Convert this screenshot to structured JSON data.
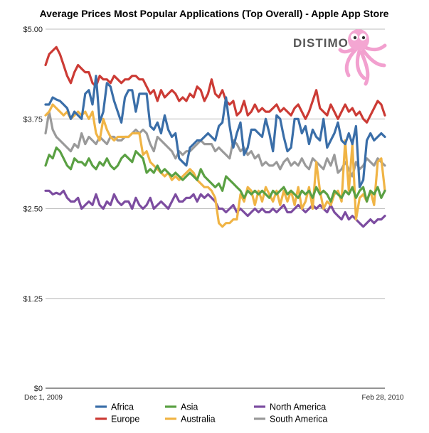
{
  "chart_data": {
    "type": "line",
    "title": "Average Prices Most Popular Applications (Top Overall) - Apple App Store",
    "brand": "DISTIMO",
    "xlabel": "",
    "ylabel": "",
    "ylim": [
      0,
      5
    ],
    "yticks": [
      0,
      1.25,
      2.5,
      3.75,
      5
    ],
    "ytick_labels": [
      "$0",
      "$1.25",
      "$2.50",
      "$3.75",
      "$5.00"
    ],
    "xtick_labels": [
      "Dec 1, 2009",
      "Feb 28, 2010"
    ],
    "grid": true,
    "legend_position": "bottom",
    "series": [
      {
        "name": "Africa",
        "color": "#3a6ea8",
        "values": [
          3.95,
          3.95,
          4.05,
          4.02,
          4.0,
          3.95,
          3.9,
          3.75,
          3.85,
          3.8,
          3.75,
          4.1,
          4.15,
          3.95,
          4.35,
          3.7,
          3.85,
          4.25,
          4.2,
          4.0,
          3.85,
          3.7,
          4.05,
          4.15,
          4.15,
          3.85,
          4.1,
          4.1,
          4.1,
          3.65,
          3.6,
          3.7,
          3.55,
          3.8,
          3.6,
          3.5,
          3.55,
          3.2,
          3.15,
          3.1,
          3.35,
          3.4,
          3.45,
          3.45,
          3.5,
          3.55,
          3.5,
          3.45,
          3.65,
          3.7,
          4.05,
          3.65,
          3.35,
          3.55,
          3.7,
          3.25,
          3.35,
          3.6,
          3.6,
          3.55,
          3.5,
          3.75,
          3.55,
          3.3,
          3.8,
          3.75,
          3.5,
          3.3,
          3.35,
          3.75,
          3.75,
          3.55,
          3.65,
          3.4,
          3.6,
          3.5,
          3.45,
          3.75,
          3.35,
          3.45,
          3.55,
          3.7,
          3.45,
          3.4,
          3.55,
          3.4,
          3.65,
          2.8,
          2.9,
          3.45,
          3.55,
          3.45,
          3.5,
          3.55,
          3.5
        ]
      },
      {
        "name": "Europe",
        "color": "#cc3b35",
        "values": [
          4.5,
          4.65,
          4.7,
          4.75,
          4.65,
          4.5,
          4.35,
          4.25,
          4.4,
          4.5,
          4.45,
          4.4,
          4.4,
          4.25,
          4.2,
          4.35,
          4.3,
          4.3,
          4.25,
          4.35,
          4.3,
          4.25,
          4.3,
          4.3,
          4.35,
          4.35,
          4.3,
          4.3,
          4.2,
          4.1,
          4.15,
          4.0,
          4.15,
          4.05,
          4.1,
          4.15,
          4.1,
          4.0,
          4.05,
          4.0,
          4.1,
          4.05,
          4.2,
          4.15,
          4.0,
          4.1,
          4.3,
          4.1,
          4.05,
          4.15,
          4.0,
          3.95,
          4.0,
          3.8,
          3.85,
          4.0,
          3.8,
          3.85,
          3.95,
          3.85,
          3.9,
          3.85,
          3.85,
          3.9,
          3.95,
          3.85,
          3.9,
          3.85,
          3.8,
          3.9,
          3.95,
          3.85,
          3.75,
          3.85,
          4.0,
          4.15,
          3.9,
          3.85,
          3.8,
          3.95,
          3.85,
          3.75,
          3.85,
          3.95,
          3.85,
          3.9,
          3.8,
          3.85,
          3.75,
          3.7,
          3.8,
          3.9,
          4.0,
          3.95,
          3.8
        ]
      },
      {
        "name": "Asia",
        "color": "#5aa043",
        "values": [
          3.1,
          3.25,
          3.2,
          3.35,
          3.3,
          3.2,
          3.1,
          3.05,
          3.2,
          3.15,
          3.15,
          3.1,
          3.2,
          3.1,
          3.05,
          3.15,
          3.1,
          3.2,
          3.1,
          3.05,
          3.1,
          3.2,
          3.25,
          3.2,
          3.15,
          3.3,
          3.25,
          3.2,
          3.0,
          3.05,
          3.0,
          3.1,
          3.0,
          3.05,
          3.0,
          2.95,
          3.0,
          2.95,
          2.9,
          2.95,
          3.0,
          2.95,
          2.9,
          3.05,
          2.95,
          2.9,
          2.85,
          2.8,
          2.85,
          2.75,
          2.95,
          2.9,
          2.85,
          2.8,
          2.75,
          2.65,
          2.75,
          2.7,
          2.75,
          2.7,
          2.75,
          2.7,
          2.65,
          2.75,
          2.7,
          2.75,
          2.8,
          2.7,
          2.75,
          2.7,
          2.65,
          2.75,
          2.7,
          2.75,
          2.65,
          2.8,
          2.7,
          2.75,
          2.7,
          2.6,
          2.75,
          2.7,
          2.65,
          2.75,
          2.7,
          2.8,
          2.65,
          2.75,
          2.8,
          2.6,
          2.75,
          2.7,
          2.8,
          2.65,
          2.75
        ]
      },
      {
        "name": "Australia",
        "color": "#f0b445",
        "values": [
          3.8,
          3.85,
          3.95,
          3.9,
          3.85,
          3.8,
          3.85,
          3.75,
          3.8,
          3.85,
          3.8,
          3.85,
          3.75,
          3.85,
          3.55,
          3.45,
          3.75,
          3.6,
          3.5,
          3.45,
          3.5,
          3.5,
          3.5,
          3.5,
          3.55,
          3.55,
          3.55,
          3.25,
          3.3,
          3.15,
          3.1,
          3.05,
          3.0,
          2.95,
          3.0,
          2.9,
          2.95,
          2.9,
          2.95,
          3.0,
          3.05,
          3.0,
          2.9,
          2.85,
          2.8,
          2.8,
          2.75,
          2.65,
          2.3,
          2.25,
          2.3,
          2.3,
          2.35,
          2.35,
          2.7,
          2.6,
          2.8,
          2.75,
          2.55,
          2.75,
          2.6,
          2.8,
          2.7,
          2.6,
          2.75,
          2.55,
          2.75,
          2.6,
          2.75,
          2.55,
          2.8,
          2.5,
          2.6,
          2.8,
          2.5,
          3.15,
          2.75,
          2.5,
          2.6,
          2.55,
          2.7,
          2.75,
          2.6,
          3.45,
          2.75,
          3.4,
          2.35,
          2.65,
          2.7,
          2.6,
          2.75,
          2.55,
          3.15,
          3.2,
          2.75
        ]
      },
      {
        "name": "North America",
        "color": "#7c4ca0",
        "values": [
          2.75,
          2.75,
          2.7,
          2.72,
          2.7,
          2.75,
          2.65,
          2.6,
          2.6,
          2.65,
          2.5,
          2.55,
          2.6,
          2.55,
          2.7,
          2.55,
          2.5,
          2.6,
          2.55,
          2.7,
          2.6,
          2.55,
          2.6,
          2.6,
          2.5,
          2.65,
          2.55,
          2.5,
          2.55,
          2.65,
          2.5,
          2.55,
          2.6,
          2.55,
          2.5,
          2.6,
          2.7,
          2.6,
          2.6,
          2.65,
          2.65,
          2.7,
          2.6,
          2.7,
          2.65,
          2.7,
          2.65,
          2.6,
          2.5,
          2.5,
          2.45,
          2.5,
          2.55,
          2.45,
          2.5,
          2.45,
          2.4,
          2.45,
          2.5,
          2.45,
          2.5,
          2.45,
          2.45,
          2.5,
          2.45,
          2.5,
          2.55,
          2.45,
          2.45,
          2.5,
          2.55,
          2.5,
          2.45,
          2.5,
          2.55,
          2.5,
          2.55,
          2.5,
          2.45,
          2.55,
          2.45,
          2.4,
          2.35,
          2.45,
          2.35,
          2.4,
          2.35,
          2.3,
          2.25,
          2.3,
          2.35,
          2.3,
          2.35,
          2.35,
          2.4
        ]
      },
      {
        "name": "South America",
        "color": "#9a9a9a",
        "values": [
          3.55,
          3.85,
          3.6,
          3.5,
          3.45,
          3.4,
          3.35,
          3.3,
          3.4,
          3.35,
          3.55,
          3.4,
          3.5,
          3.45,
          3.4,
          3.5,
          3.45,
          3.4,
          3.5,
          3.5,
          3.45,
          3.45,
          3.5,
          3.5,
          3.55,
          3.6,
          3.55,
          3.6,
          3.55,
          3.4,
          3.3,
          3.5,
          3.45,
          3.4,
          3.35,
          3.3,
          3.2,
          3.3,
          3.25,
          3.3,
          3.3,
          3.35,
          3.4,
          3.45,
          3.4,
          3.4,
          3.4,
          3.3,
          3.35,
          3.3,
          3.25,
          3.2,
          3.45,
          3.4,
          3.3,
          3.35,
          3.25,
          3.3,
          3.2,
          3.25,
          3.1,
          3.15,
          3.1,
          3.1,
          3.15,
          3.05,
          3.15,
          3.2,
          3.1,
          3.15,
          3.1,
          3.2,
          3.1,
          3.05,
          3.2,
          3.15,
          3.1,
          3.05,
          3.2,
          3.1,
          3.25,
          3.0,
          3.05,
          3.15,
          3.05,
          2.95,
          3.15,
          3.05,
          3.1,
          3.2,
          3.15,
          3.1,
          3.2,
          3.15,
          3.1
        ]
      }
    ]
  }
}
